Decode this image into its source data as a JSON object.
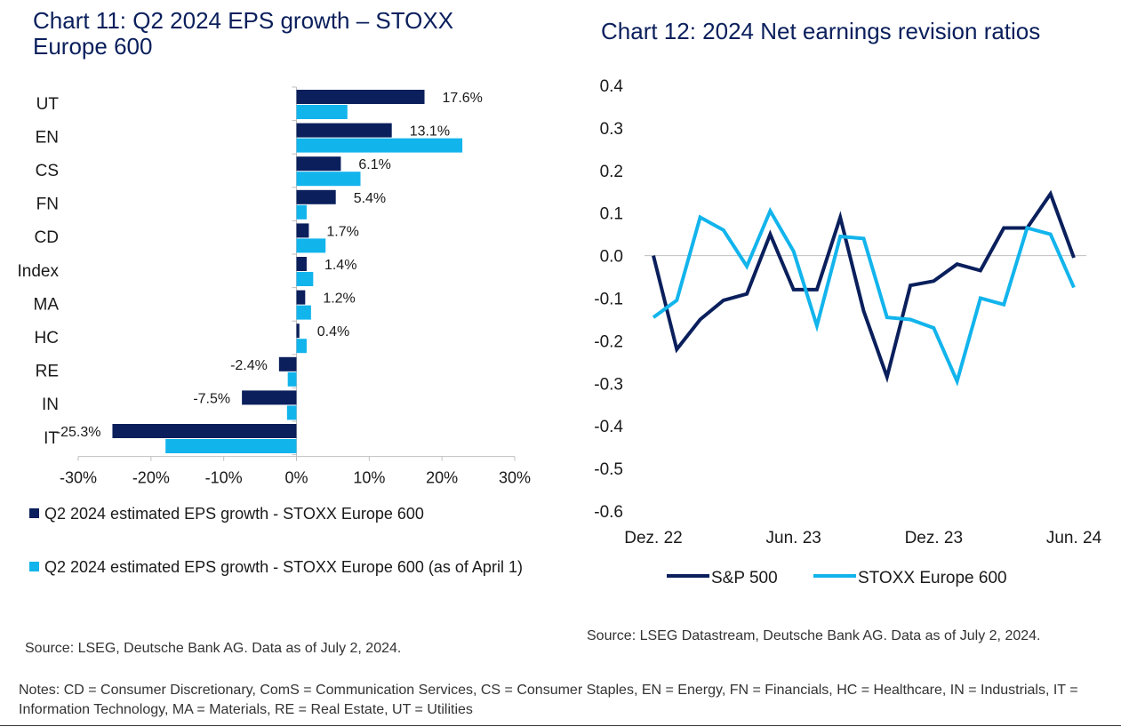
{
  "chart11": {
    "title": "Chart 11: Q2 2024 EPS growth – STOXX Europe 600",
    "legend": [
      {
        "label": "Q2 2024 estimated EPS growth - STOXX Europe 600",
        "color": "#0a1f5c"
      },
      {
        "label": "Q2 2024 estimated EPS growth - STOXX Europe 600 (as of April 1)",
        "color": "#12b4ec"
      }
    ],
    "source": "Source: LSEG, Deutsche Bank AG. Data as of July 2, 2024."
  },
  "chart12": {
    "title": "Chart 12: 2024 Net earnings revision ratios",
    "legend": [
      {
        "label": "S&P 500",
        "color": "#0a1f5c"
      },
      {
        "label": "STOXX Europe 600",
        "color": "#12b4ec"
      }
    ],
    "source": "Source: LSEG Datastream, Deutsche Bank AG. Data as of July 2, 2024."
  },
  "notes": "Notes: CD = Consumer Discretionary, ComS = Communication Services, CS = Consumer Staples, EN = Energy, FN = Financials, HC = Healthcare, IN = Industrials, IT = Information Technology, MA = Materials, RE = Real Estate, UT = Utilities",
  "chart_data": [
    {
      "type": "bar",
      "orientation": "horizontal",
      "title": "Chart 11: Q2 2024 EPS growth – STOXX Europe 600",
      "categories": [
        "UT",
        "EN",
        "CS",
        "FN",
        "CD",
        "Index",
        "MA",
        "HC",
        "RE",
        "IN",
        "IT"
      ],
      "series": [
        {
          "name": "Q2 2024 estimated EPS growth - STOXX Europe 600",
          "color": "#0a1f5c",
          "values": [
            17.6,
            13.1,
            6.1,
            5.4,
            1.7,
            1.4,
            1.2,
            0.4,
            -2.4,
            -7.5,
            -25.3
          ],
          "labels": [
            "17.6%",
            "13.1%",
            "6.1%",
            "5.4%",
            "1.7%",
            "1.4%",
            "1.2%",
            "0.4%",
            "-2.4%",
            "-7.5%",
            "-25.3%"
          ]
        },
        {
          "name": "Q2 2024 estimated EPS growth - STOXX Europe 600 (as of April 1)",
          "color": "#12b4ec",
          "values": [
            7.0,
            22.8,
            8.8,
            1.4,
            4.0,
            2.3,
            2.0,
            1.4,
            -1.2,
            -1.3,
            -18.0
          ]
        }
      ],
      "xlim": [
        -30,
        30
      ],
      "xticks": [
        -30,
        -20,
        -10,
        0,
        10,
        20,
        30
      ],
      "xtick_labels": [
        "-30%",
        "-20%",
        "-10%",
        "0%",
        "10%",
        "20%",
        "30%"
      ],
      "xlabel": "",
      "ylabel": ""
    },
    {
      "type": "line",
      "title": "Chart 12: 2024 Net earnings revision ratios",
      "x": [
        "2022-12",
        "2023-01",
        "2023-02",
        "2023-03",
        "2023-04",
        "2023-05",
        "2023-06",
        "2023-07",
        "2023-08",
        "2023-09",
        "2023-10",
        "2023-11",
        "2023-12",
        "2024-01",
        "2024-02",
        "2024-03",
        "2024-04",
        "2024-05",
        "2024-06"
      ],
      "series": [
        {
          "name": "S&P 500",
          "color": "#0a1f5c",
          "values": [
            0.0,
            -0.22,
            -0.15,
            -0.105,
            -0.09,
            0.05,
            -0.08,
            -0.08,
            0.09,
            -0.13,
            -0.285,
            -0.07,
            -0.06,
            -0.02,
            -0.035,
            0.065,
            0.065,
            0.145,
            -0.005
          ]
        },
        {
          "name": "STOXX Europe 600",
          "color": "#12b4ec",
          "values": [
            -0.145,
            -0.105,
            0.09,
            0.06,
            -0.025,
            0.105,
            0.01,
            -0.165,
            0.045,
            0.04,
            -0.145,
            -0.15,
            -0.17,
            -0.295,
            -0.1,
            -0.115,
            0.065,
            0.05,
            -0.075
          ]
        }
      ],
      "ylim": [
        -0.6,
        0.4
      ],
      "yticks": [
        0.4,
        0.3,
        0.2,
        0.1,
        0.0,
        -0.1,
        -0.2,
        -0.3,
        -0.4,
        -0.5,
        -0.6
      ],
      "ytick_labels": [
        "0.4",
        "0.3",
        "0.2",
        "0.1",
        "0.0",
        "-0.1",
        "-0.2",
        "-0.3",
        "-0.4",
        "-0.5",
        "-0.6"
      ],
      "xtick_labels": [
        {
          "label": "Dez. 22",
          "x": "2022-12"
        },
        {
          "label": "Jun. 23",
          "x": "2023-06"
        },
        {
          "label": "Dez. 23",
          "x": "2023-12"
        },
        {
          "label": "Jun. 24",
          "x": "2024-06"
        }
      ],
      "legend_position": "bottom",
      "xlabel": "",
      "ylabel": ""
    }
  ]
}
